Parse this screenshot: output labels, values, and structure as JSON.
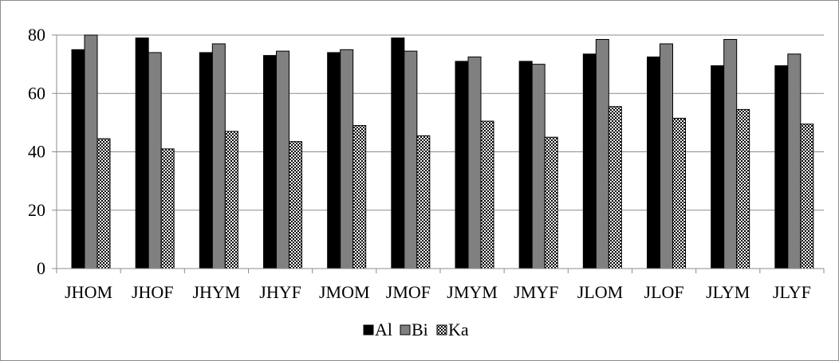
{
  "chart_data": {
    "type": "bar",
    "title": "",
    "xlabel": "",
    "ylabel": "",
    "ylim": [
      0,
      80
    ],
    "yticks": [
      0,
      20,
      40,
      60,
      80
    ],
    "grid": true,
    "legend_position": "bottom",
    "categories": [
      "JHOM",
      "JHOF",
      "JHYM",
      "JHYF",
      "JMOM",
      "JMOF",
      "JMYM",
      "JMYF",
      "JLOM",
      "JLOF",
      "JLYM",
      "JLYF"
    ],
    "series": [
      {
        "name": "Al",
        "fill": "solid",
        "color": "#000000",
        "values": [
          75,
          79,
          74,
          73,
          74,
          79,
          71,
          71,
          73.5,
          72.5,
          69.5,
          69.5
        ]
      },
      {
        "name": "Bi",
        "fill": "solid",
        "color": "#808080",
        "values": [
          80,
          74,
          77,
          74.5,
          75,
          74.5,
          72.5,
          70,
          78.5,
          77,
          78.5,
          73.5
        ]
      },
      {
        "name": "Ka",
        "fill": "checker",
        "color": "#000000",
        "values": [
          44.5,
          41,
          47,
          43.5,
          49,
          45.5,
          50.5,
          45,
          55.5,
          51.5,
          54.5,
          49.5
        ]
      }
    ]
  }
}
